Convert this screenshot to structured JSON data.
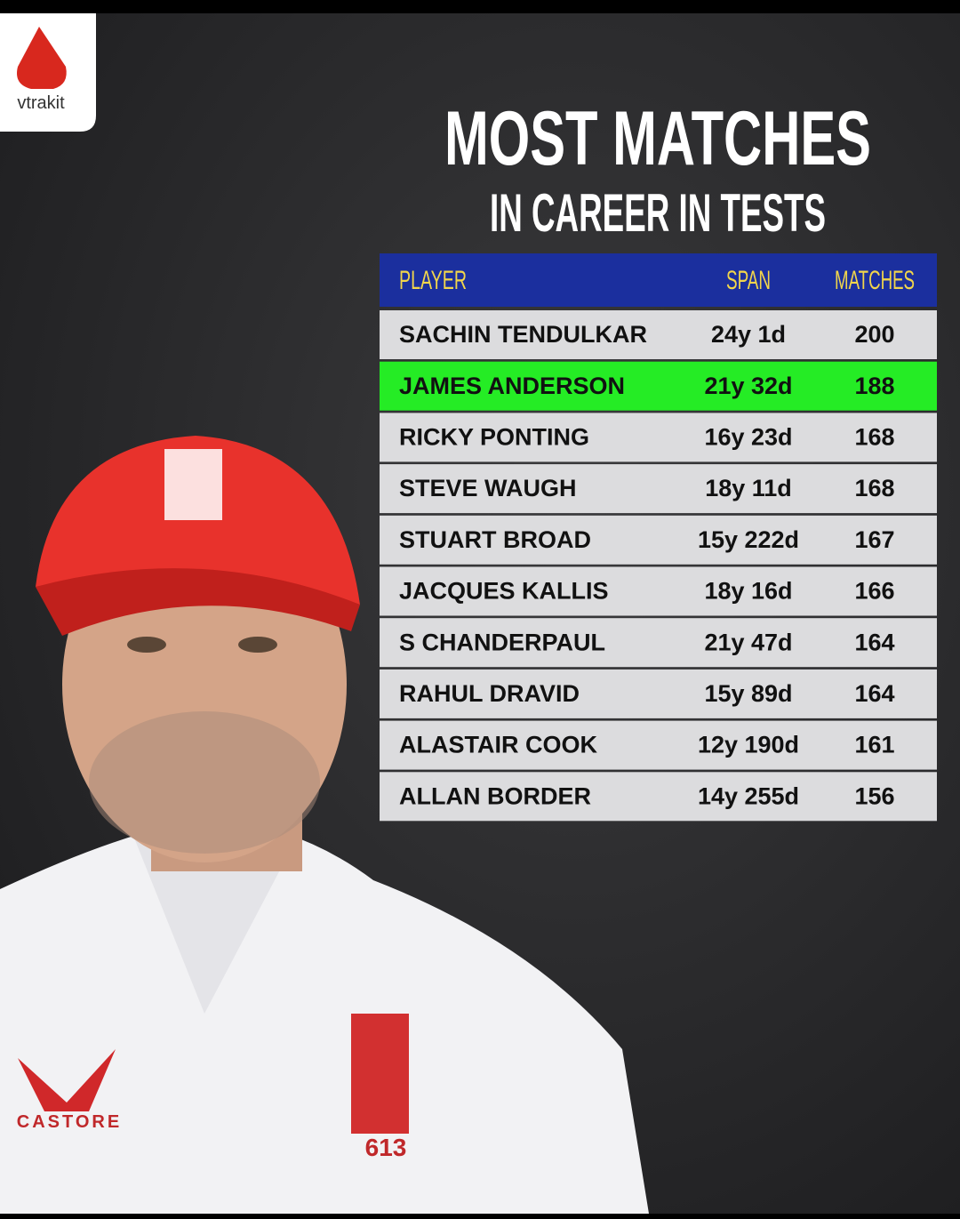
{
  "logo": {
    "text": "vtrakit"
  },
  "header": {
    "title": "MOST MATCHES",
    "subtitle": "IN CAREER IN TESTS"
  },
  "table": {
    "columns": [
      "PLAYER",
      "SPAN",
      "MATCHES"
    ],
    "highlight_row": 1,
    "rows": [
      [
        "SACHIN TENDULKAR",
        "24y 1d",
        200
      ],
      [
        "JAMES ANDERSON",
        "21y 32d",
        188
      ],
      [
        "RICKY PONTING",
        "16y 23d",
        168
      ],
      [
        "STEVE WAUGH",
        "18y 11d",
        168
      ],
      [
        "STUART BROAD",
        "15y 222d",
        167
      ],
      [
        "JACQUES KALLIS",
        "18y 16d",
        166
      ],
      [
        "S CHANDERPAUL",
        "21y 47d",
        164
      ],
      [
        "RAHUL DRAVID",
        "15y 89d",
        164
      ],
      [
        "ALASTAIR COOK",
        "12y 190d",
        161
      ],
      [
        "ALLAN BORDER",
        "14y 255d",
        156
      ]
    ]
  },
  "photo": {
    "brand": "CASTORE",
    "cap_number": "613"
  }
}
